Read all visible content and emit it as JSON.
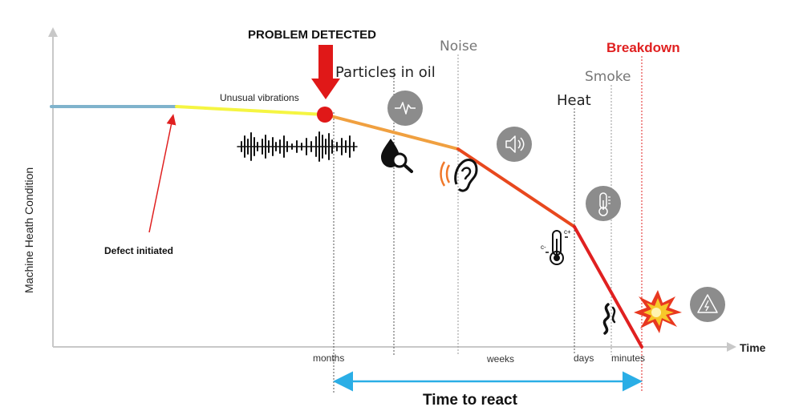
{
  "diagram": {
    "problem_detected_label": "PROBLEM DETECTED",
    "breakdown_label": "Breakdown",
    "y_axis_label": "Machine Heath Condition",
    "x_axis_label": "Time",
    "time_to_react_label": "Time to react",
    "stages": [
      {
        "label": "Unusual vibrations",
        "icon": "vibration-waveform-icon"
      },
      {
        "label": "Particles in oil",
        "icon": "oil-drop-magnifier-icon"
      },
      {
        "label": "Noise",
        "icon": "ear-sound-icon"
      },
      {
        "label": "Heat",
        "icon": "thermometer-icon"
      },
      {
        "label": "Smoke",
        "icon": "smoke-icon"
      }
    ],
    "badges": [
      "pulse-badge-icon",
      "speaker-badge-icon",
      "thermometer-badge-icon",
      "warning-badge-icon"
    ],
    "annotation": "Defect initiated",
    "time_ticks": [
      "months",
      "weeks",
      "days",
      "minutes"
    ],
    "colors": {
      "baseline": "#7fb3cc",
      "early": "#f5f542",
      "mid": "#f0a040",
      "late": "#e02020",
      "problem_marker": "#e01818",
      "breakdown_text": "#e02020",
      "react_arrow": "#2aaee6",
      "badge_bg": "#8c8c8c"
    }
  }
}
